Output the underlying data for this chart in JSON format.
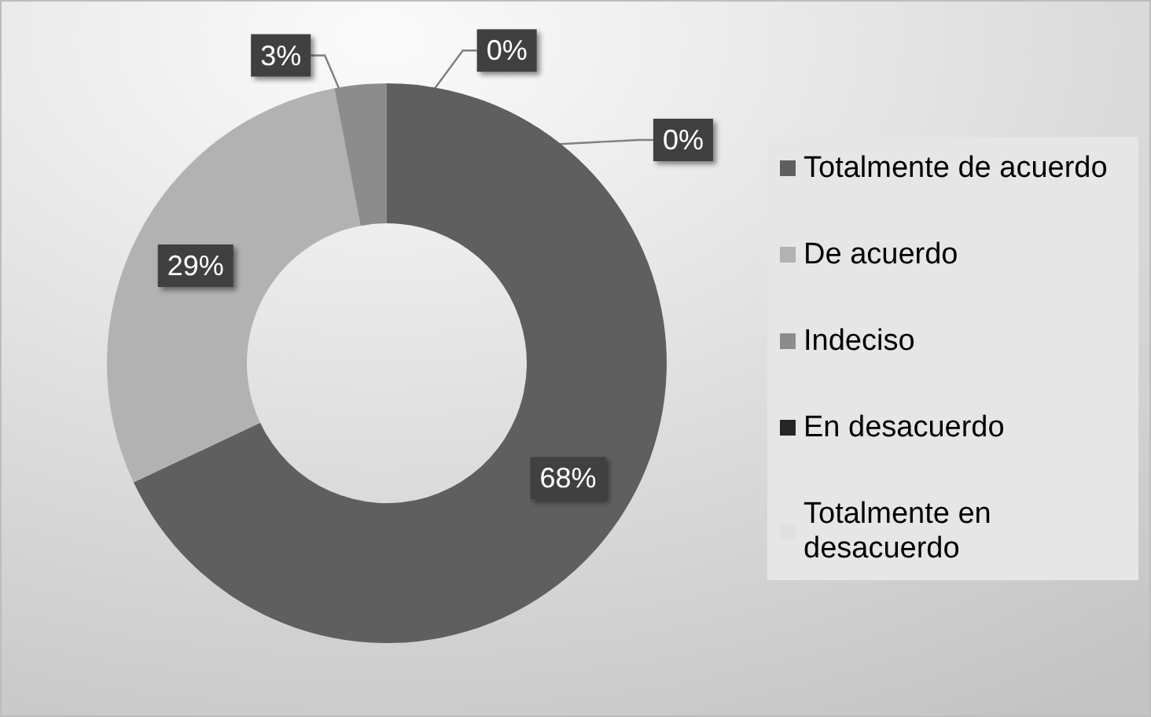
{
  "chart_data": {
    "type": "donut",
    "categories": [
      "Totalmente de acuerdo",
      "De acuerdo",
      "Indeciso",
      "En desacuerdo",
      "Totalmente en desacuerdo"
    ],
    "values": [
      68,
      29,
      3,
      0,
      0
    ],
    "colors": [
      "#5f5f5f",
      "#b2b2b2",
      "#8c8c8c",
      "#262626",
      "#e0e0e0"
    ],
    "value_labels": [
      "68%",
      "29%",
      "3%",
      "0%",
      "0%"
    ],
    "legend": "right"
  }
}
